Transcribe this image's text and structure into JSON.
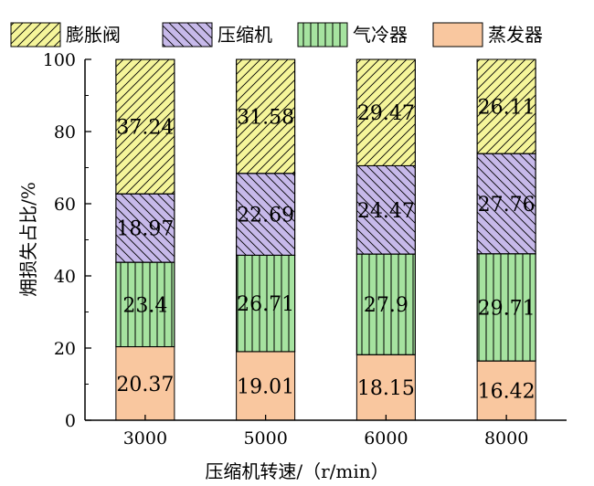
{
  "chart_data": {
    "type": "bar",
    "stacked": true,
    "title": "",
    "xlabel": "压缩机转速/（r/min）",
    "ylabel": "㶲损失占比/%",
    "ylim": [
      0,
      100
    ],
    "yticks": [
      0,
      20,
      40,
      60,
      80,
      100
    ],
    "categories": [
      "3000",
      "5000",
      "6000",
      "8000"
    ],
    "series": [
      {
        "name": "蒸发器",
        "values": [
          20.37,
          19.01,
          18.15,
          16.42
        ],
        "color": "#f9c79f",
        "pattern": "none"
      },
      {
        "name": "气冷器",
        "values": [
          23.4,
          26.71,
          27.9,
          29.71
        ],
        "color": "#a6e3a0",
        "pattern": "vertical"
      },
      {
        "name": "压缩机",
        "values": [
          18.97,
          22.69,
          24.47,
          27.76
        ],
        "color": "#c7b9ea",
        "pattern": "backslash"
      },
      {
        "name": "膨胀阀",
        "values": [
          37.24,
          31.58,
          29.47,
          26.11
        ],
        "color": "#f5f59a",
        "pattern": "slash"
      }
    ],
    "legend": {
      "position": "top",
      "order": [
        "膨胀阀",
        "压缩机",
        "气冷器",
        "蒸发器"
      ]
    },
    "grid": false
  }
}
